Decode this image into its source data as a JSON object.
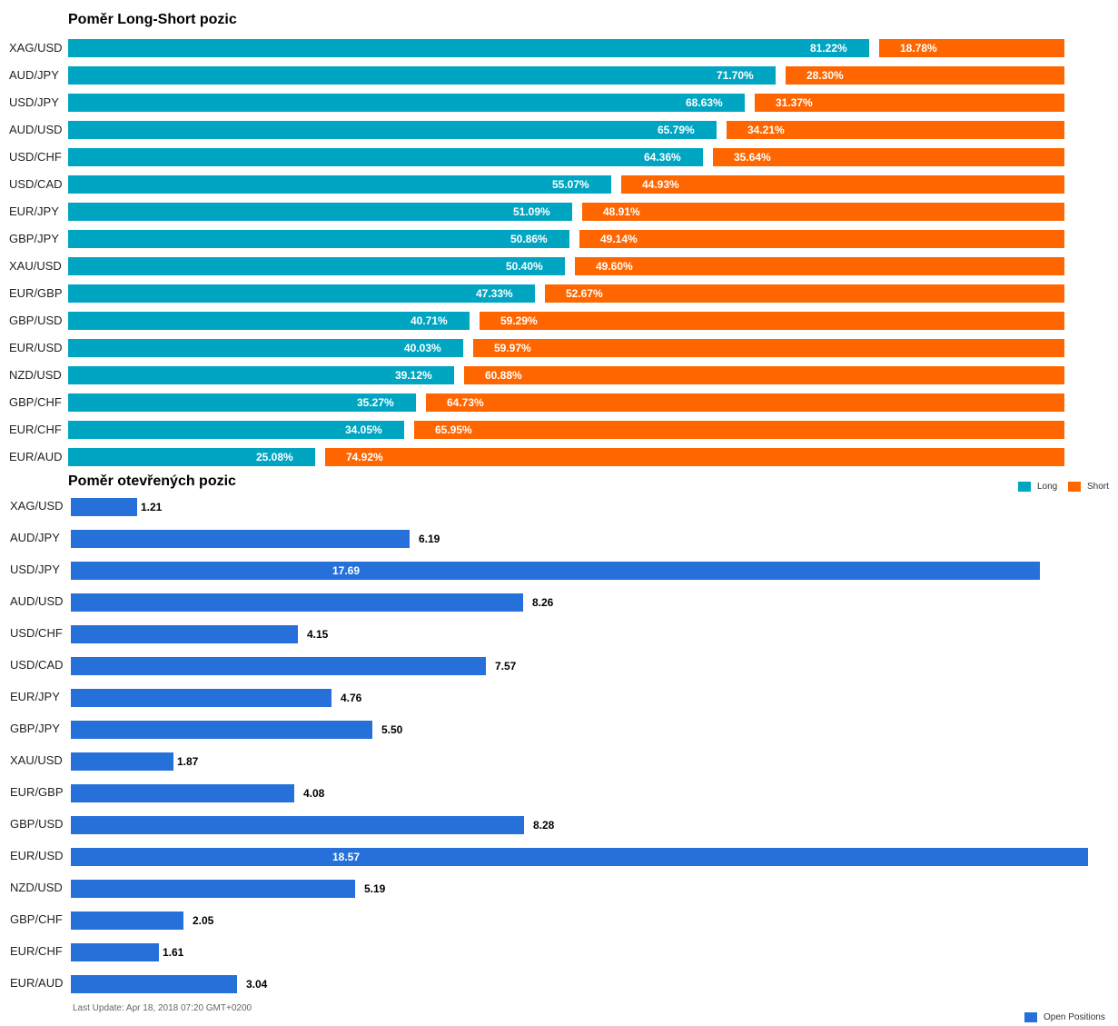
{
  "chart_data": [
    {
      "type": "bar",
      "title": "Poměr Long-Short pozic",
      "categories": [
        "XAG/USD",
        "AUD/JPY",
        "USD/JPY",
        "AUD/USD",
        "USD/CHF",
        "USD/CAD",
        "EUR/JPY",
        "GBP/JPY",
        "XAU/USD",
        "EUR/GBP",
        "GBP/USD",
        "EUR/USD",
        "NZD/USD",
        "GBP/CHF",
        "EUR/CHF",
        "EUR/AUD"
      ],
      "series": [
        {
          "name": "Long",
          "values": [
            81.22,
            71.7,
            68.63,
            65.79,
            64.36,
            55.07,
            51.09,
            50.86,
            50.4,
            47.33,
            40.71,
            40.03,
            39.12,
            35.27,
            34.05,
            25.08
          ],
          "labels": [
            "81.22%",
            "71.70%",
            "68.63%",
            "65.79%",
            "64.36%",
            "55.07%",
            "51.09%",
            "50.86%",
            "50.40%",
            "47.33%",
            "40.71%",
            "40.03%",
            "39.12%",
            "35.27%",
            "34.05%",
            "25.08%"
          ]
        },
        {
          "name": "Short",
          "values": [
            18.78,
            28.3,
            31.37,
            34.21,
            35.64,
            44.93,
            48.91,
            49.14,
            49.6,
            52.67,
            59.29,
            59.97,
            60.88,
            64.73,
            65.95,
            74.92
          ],
          "labels": [
            "18.78%",
            "28.30%",
            "31.37%",
            "34.21%",
            "35.64%",
            "44.93%",
            "48.91%",
            "49.14%",
            "49.60%",
            "52.67%",
            "59.29%",
            "59.97%",
            "60.88%",
            "64.73%",
            "65.95%",
            "74.92%"
          ]
        }
      ],
      "ylim": [
        0,
        100
      ],
      "legend_position": "bottom-right",
      "colors": {
        "Long": "#00a5c2",
        "Short": "#ff6600"
      }
    },
    {
      "type": "bar",
      "title": "Poměr otevřených pozic",
      "categories": [
        "XAG/USD",
        "AUD/JPY",
        "USD/JPY",
        "AUD/USD",
        "USD/CHF",
        "USD/CAD",
        "EUR/JPY",
        "GBP/JPY",
        "XAU/USD",
        "EUR/GBP",
        "GBP/USD",
        "EUR/USD",
        "NZD/USD",
        "GBP/CHF",
        "EUR/CHF",
        "EUR/AUD"
      ],
      "series": [
        {
          "name": "Open Positions",
          "values": [
            1.21,
            6.19,
            17.69,
            8.26,
            4.15,
            7.57,
            4.76,
            5.5,
            1.87,
            4.08,
            8.28,
            18.57,
            5.19,
            2.05,
            1.61,
            3.04
          ],
          "labels": [
            "1.21",
            "6.19",
            "17.69",
            "8.26",
            "4.15",
            "7.57",
            "4.76",
            "5.50",
            "1.87",
            "4.08",
            "8.28",
            "18.57",
            "5.19",
            "2.05",
            "1.61",
            "3.04"
          ]
        }
      ],
      "ylim": [
        0,
        18.57
      ],
      "legend_position": "bottom-right",
      "colors": {
        "Open Positions": "#2571d9"
      }
    }
  ],
  "footer": {
    "last_update": "Last Update: Apr 18, 2018 07:20 GMT+0200"
  }
}
